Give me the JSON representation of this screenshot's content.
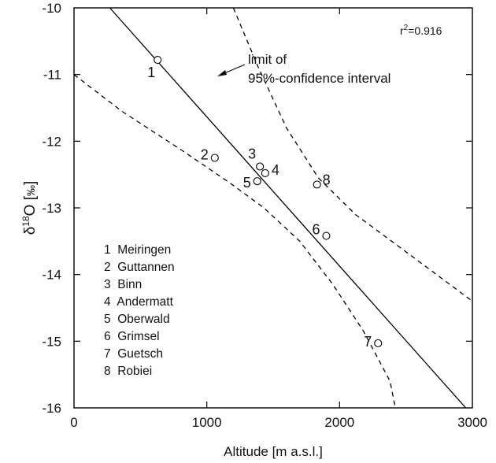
{
  "chart_data": {
    "type": "scatter",
    "xlabel": "Altitude  [m a.s.l.]",
    "ylabel_parts": {
      "delta": "δ",
      "sup": "18",
      "main": "O  [",
      "permil": "‰",
      "close": "]"
    },
    "xlim": [
      0,
      3000
    ],
    "ylim": [
      -16,
      -10
    ],
    "x_ticks": [
      0,
      1000,
      2000,
      3000
    ],
    "y_ticks": [
      -10,
      -11,
      -12,
      -13,
      -14,
      -15,
      -16
    ],
    "r2_label": {
      "prefix": "r",
      "sup": "2",
      "value": "=0.916"
    },
    "annotation": {
      "line1": "limit of",
      "line2": "95%-confidence interval"
    },
    "points": [
      {
        "id": "1",
        "name": "Meiringen",
        "x": 630,
        "y": -10.78
      },
      {
        "id": "2",
        "name": "Guttannen",
        "x": 1060,
        "y": -12.25
      },
      {
        "id": "3",
        "name": "Binn",
        "x": 1400,
        "y": -12.38
      },
      {
        "id": "4",
        "name": "Andermatt",
        "x": 1440,
        "y": -12.48
      },
      {
        "id": "5",
        "name": "Oberwald",
        "x": 1380,
        "y": -12.6
      },
      {
        "id": "6",
        "name": "Grimsel",
        "x": 1900,
        "y": -13.42
      },
      {
        "id": "7",
        "name": "Guetsch",
        "x": 2290,
        "y": -15.03
      },
      {
        "id": "8",
        "name": "Robiei",
        "x": 1830,
        "y": -12.65
      }
    ],
    "legend_items": [
      "1  Meiringen",
      "2  Guttannen",
      "3  Binn",
      "4  Andermatt",
      "5  Oberwald",
      "6  Grimsel",
      "7  Guetsch",
      "8  Robiei"
    ],
    "regression_line": {
      "x": [
        270,
        2950
      ],
      "y": [
        -10,
        -16
      ]
    },
    "ci_upper": {
      "x": [
        1200,
        1390,
        1600,
        1840,
        2120,
        2460,
        3000
      ],
      "y": [
        -10,
        -10.9,
        -11.8,
        -12.55,
        -13.1,
        -13.6,
        -14.4
      ]
    },
    "ci_lower": {
      "x": [
        0,
        360,
        800,
        1170,
        1430,
        1700,
        1950,
        2180,
        2380,
        2420
      ],
      "y": [
        -11,
        -11.55,
        -12.12,
        -12.62,
        -13.0,
        -13.5,
        -14.15,
        -14.85,
        -15.6,
        -16
      ]
    }
  }
}
